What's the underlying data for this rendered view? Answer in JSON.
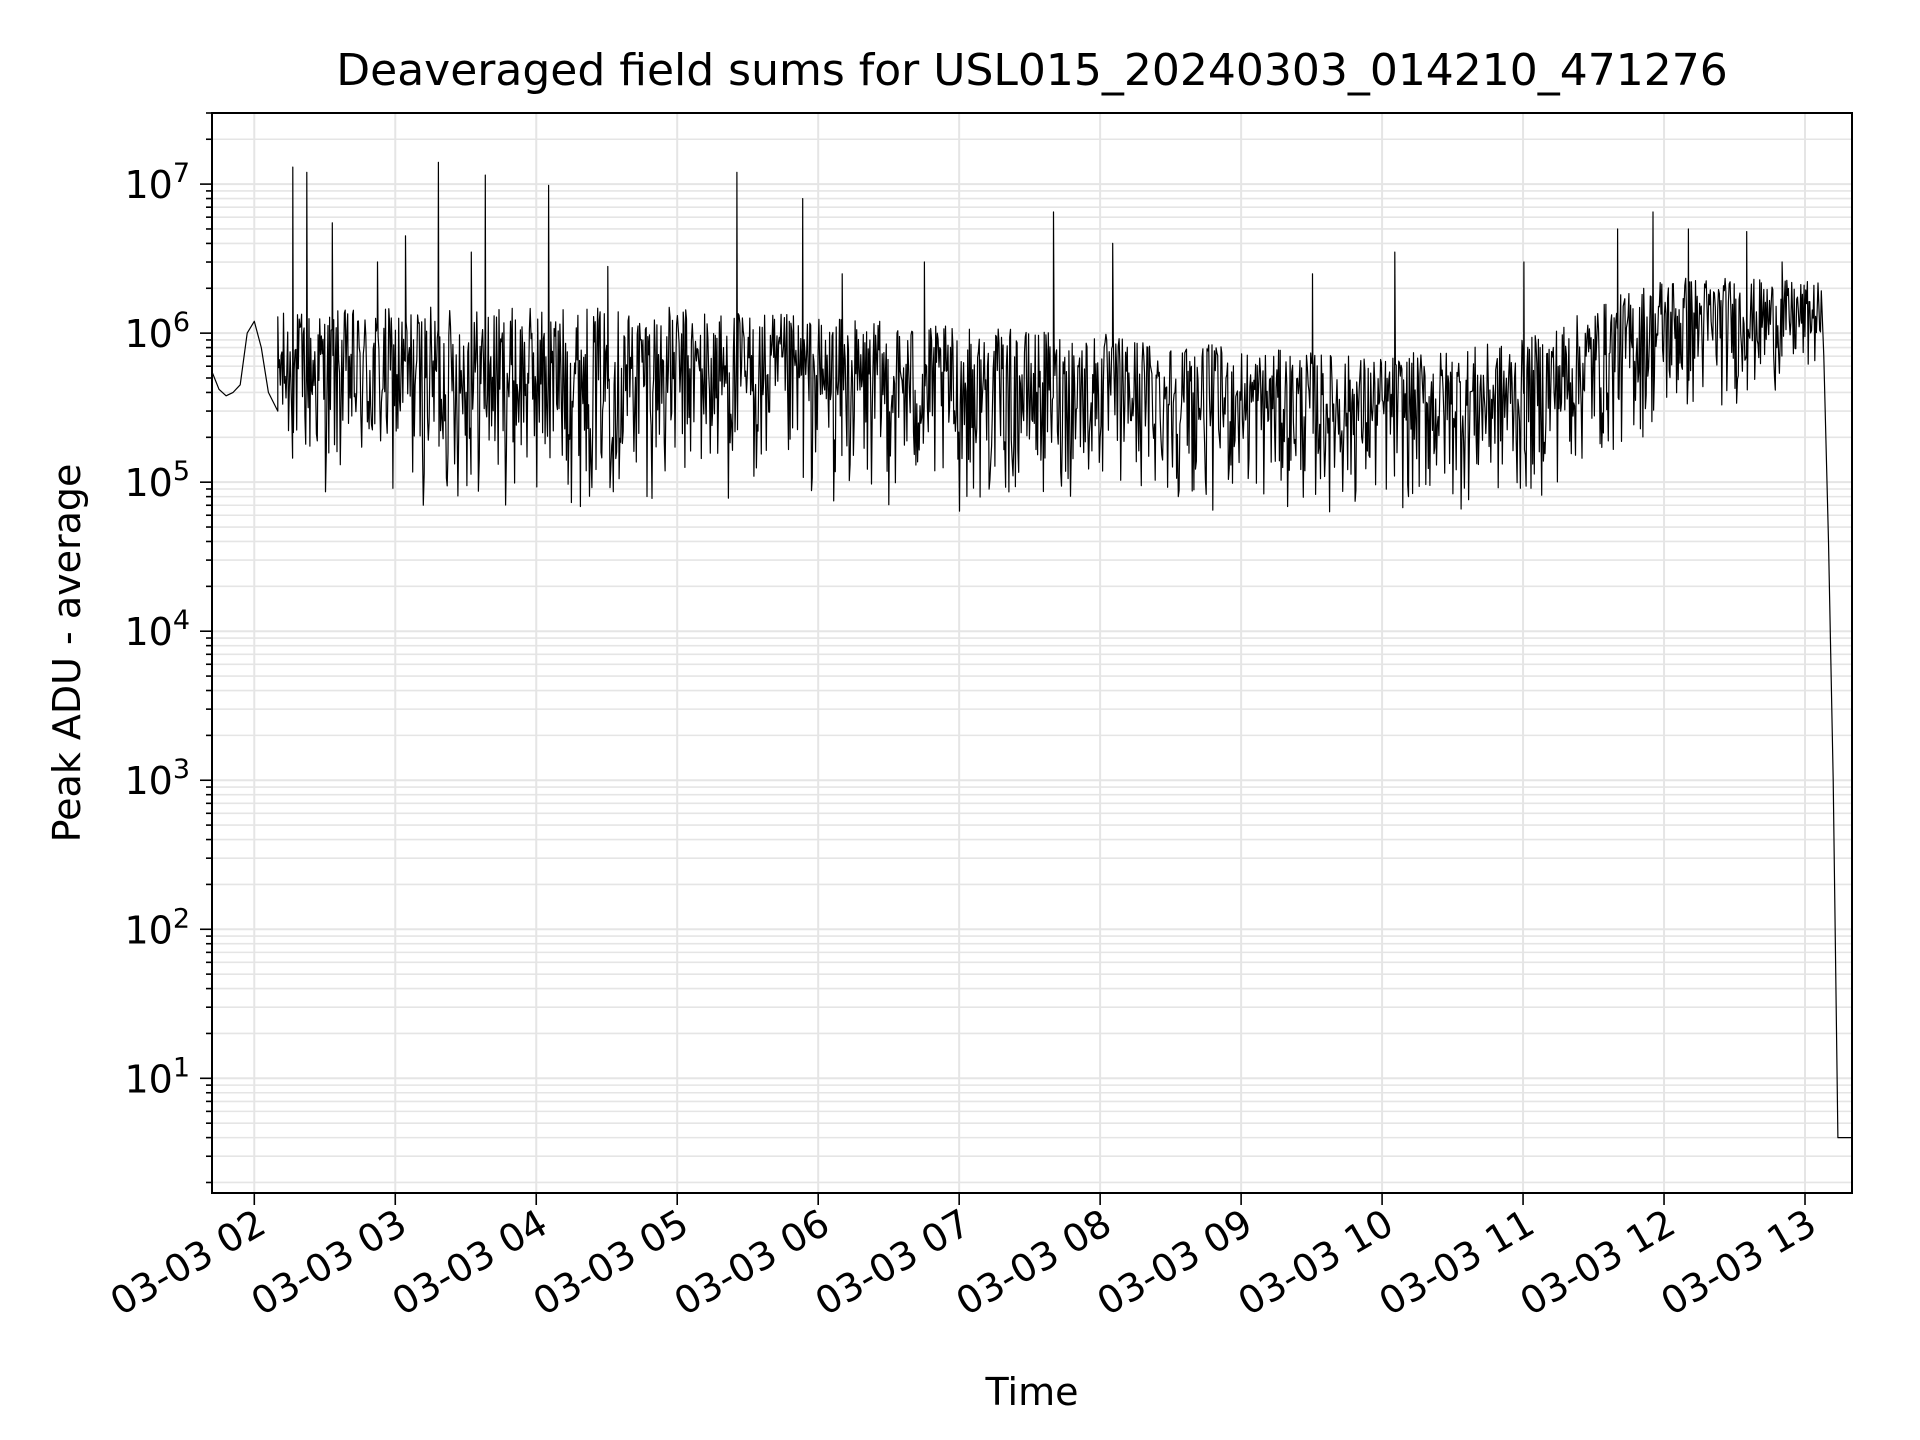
{
  "chart_data": {
    "type": "line",
    "title": "Deaveraged field sums for USL015_20240303_014210_471276",
    "xlabel": "Time",
    "ylabel": "Peak ADU - average",
    "xscale": "time",
    "yscale": "log",
    "xlim": [
      "2024-03-03 01:42",
      "2024-03-03 13:20"
    ],
    "ylim": [
      1.7,
      30000000
    ],
    "grid": true,
    "legend": "none",
    "line_color": "#000000",
    "grid_color": "#e5e5e5",
    "x_tick_labels": [
      "03-03 02",
      "03-03 03",
      "03-03 04",
      "03-03 05",
      "03-03 06",
      "03-03 07",
      "03-03 08",
      "03-03 09",
      "03-03 10",
      "03-03 11",
      "03-03 12",
      "03-03 13"
    ],
    "y_ticks": [
      {
        "value": 10,
        "base": "10",
        "exp": "1"
      },
      {
        "value": 100,
        "base": "10",
        "exp": "2"
      },
      {
        "value": 1000,
        "base": "10",
        "exp": "3"
      },
      {
        "value": 10000,
        "base": "10",
        "exp": "4"
      },
      {
        "value": 100000,
        "base": "10",
        "exp": "5"
      },
      {
        "value": 1000000,
        "base": "10",
        "exp": "6"
      },
      {
        "value": 10000000,
        "base": "10",
        "exp": "7"
      }
    ],
    "series": [
      {
        "x": [
          "2024-03-03 01:42",
          "2024-03-03 01:45",
          "2024-03-03 01:48",
          "2024-03-03 01:51",
          "2024-03-03 01:54",
          "2024-03-03 01:57",
          "2024-03-03 02:00",
          "2024-03-03 02:03",
          "2024-03-03 02:06",
          "2024-03-03 02:10",
          "2024-03-03 02:15",
          "2024-03-03 02:20",
          "2024-03-03 02:30",
          "2024-03-03 02:45",
          "2024-03-03 03:00",
          "2024-03-03 03:15",
          "2024-03-03 03:30",
          "2024-03-03 03:45",
          "2024-03-03 04:00",
          "2024-03-03 04:30",
          "2024-03-03 05:00",
          "2024-03-03 05:30",
          "2024-03-03 06:00",
          "2024-03-03 06:30",
          "2024-03-03 07:00",
          "2024-03-03 07:30",
          "2024-03-03 08:00",
          "2024-03-03 08:30",
          "2024-03-03 09:00",
          "2024-03-03 09:30",
          "2024-03-03 10:00",
          "2024-03-03 10:30",
          "2024-03-03 11:00",
          "2024-03-03 11:30",
          "2024-03-03 12:00",
          "2024-03-03 12:30",
          "2024-03-03 12:55",
          "2024-03-03 13:05",
          "2024-03-03 13:08",
          "2024-03-03 13:10",
          "2024-03-03 13:12",
          "2024-03-03 13:14",
          "2024-03-03 13:20"
        ],
        "y": [
          550000,
          420000,
          380000,
          400000,
          450000,
          1000000,
          1200000,
          800000,
          400000,
          300000,
          500000,
          600000,
          700000,
          800000,
          900000,
          1000000,
          1100000,
          900000,
          1000000,
          900000,
          800000,
          700000,
          500000,
          400000,
          350000,
          300000,
          450000,
          350000,
          250000,
          200000,
          180000,
          160000,
          150000,
          600000,
          1100000,
          1200000,
          1000000,
          900000,
          700000,
          40000,
          1000,
          4,
          4
        ],
        "band": {
          "x_start": "2024-03-03 02:10",
          "x_end": "2024-03-03 13:07",
          "comment": "dense oscillation between lower and upper envelopes",
          "upper_x": [
            "2024-03-03 02:10",
            "2024-03-03 03:00",
            "2024-03-03 04:00",
            "2024-03-03 05:00",
            "2024-03-03 06:00",
            "2024-03-03 07:00",
            "2024-03-03 08:00",
            "2024-03-03 09:00",
            "2024-03-03 10:00",
            "2024-03-03 11:00",
            "2024-03-03 12:00",
            "2024-03-03 13:07"
          ],
          "upper_y": [
            1400000,
            1500000,
            1500000,
            1500000,
            1300000,
            1100000,
            1000000,
            800000,
            700000,
            900000,
            2500000,
            2200000
          ],
          "lower_x": [
            "2024-03-03 02:10",
            "2024-03-03 03:00",
            "2024-03-03 04:00",
            "2024-03-03 05:00",
            "2024-03-03 06:00",
            "2024-03-03 07:00",
            "2024-03-03 08:00",
            "2024-03-03 09:00",
            "2024-03-03 10:00",
            "2024-03-03 11:00",
            "2024-03-03 12:00",
            "2024-03-03 13:07"
          ],
          "lower_y": [
            90000,
            60000,
            60000,
            70000,
            60000,
            55000,
            70000,
            60000,
            55000,
            60000,
            200000,
            500000
          ]
        },
        "spikes": [
          {
            "x": "2024-03-03 02:16",
            "y": 13000000
          },
          {
            "x": "2024-03-03 02:22",
            "y": 12000000
          },
          {
            "x": "2024-03-03 02:33",
            "y": 5500000
          },
          {
            "x": "2024-03-03 02:52",
            "y": 3000000
          },
          {
            "x": "2024-03-03 03:04",
            "y": 4500000
          },
          {
            "x": "2024-03-03 03:18",
            "y": 14000000
          },
          {
            "x": "2024-03-03 03:32",
            "y": 3500000
          },
          {
            "x": "2024-03-03 03:38",
            "y": 11500000
          },
          {
            "x": "2024-03-03 04:05",
            "y": 9800000
          },
          {
            "x": "2024-03-03 04:30",
            "y": 2800000
          },
          {
            "x": "2024-03-03 05:25",
            "y": 12000000
          },
          {
            "x": "2024-03-03 05:53",
            "y": 8000000
          },
          {
            "x": "2024-03-03 06:10",
            "y": 2500000
          },
          {
            "x": "2024-03-03 06:45",
            "y": 3000000
          },
          {
            "x": "2024-03-03 07:40",
            "y": 6500000
          },
          {
            "x": "2024-03-03 08:05",
            "y": 4000000
          },
          {
            "x": "2024-03-03 09:30",
            "y": 2500000
          },
          {
            "x": "2024-03-03 10:05",
            "y": 3500000
          },
          {
            "x": "2024-03-03 11:00",
            "y": 3000000
          },
          {
            "x": "2024-03-03 11:40",
            "y": 5000000
          },
          {
            "x": "2024-03-03 11:55",
            "y": 6500000
          },
          {
            "x": "2024-03-03 12:10",
            "y": 5000000
          },
          {
            "x": "2024-03-03 12:35",
            "y": 4800000
          },
          {
            "x": "2024-03-03 12:50",
            "y": 3000000
          }
        ]
      }
    ]
  }
}
